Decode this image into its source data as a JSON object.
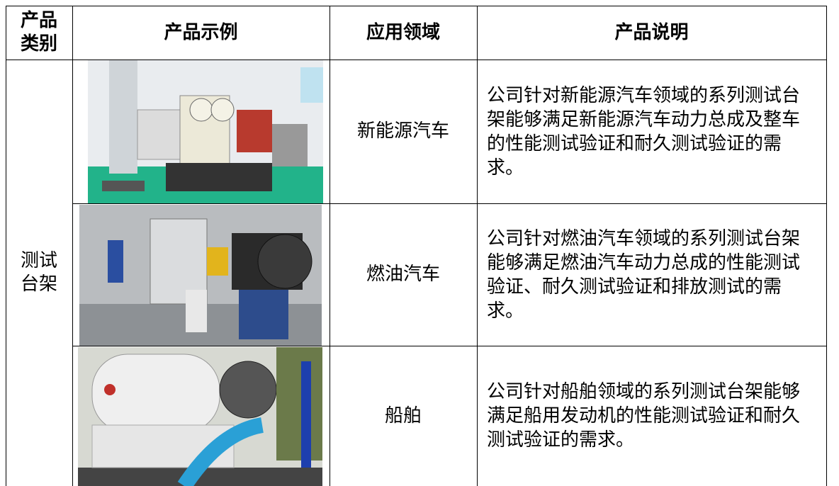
{
  "table": {
    "headers": [
      "产品类别",
      "产品示例",
      "应用领域",
      "产品说明"
    ],
    "category": "测试台架",
    "rows": [
      {
        "application": "新能源汽车",
        "description": "公司针对新能源汽车领域的系列测试台架能够满足新能源汽车动力总成及整车的性能测试验证和耐久测试验证的需求。"
      },
      {
        "application": "燃油汽车",
        "description": "公司针对燃油汽车领域的系列测试台架能够满足燃油汽车动力总成的性能测试验证、耐久测试验证和排放测试的需求。"
      },
      {
        "application": "船舶",
        "description": "公司针对船舶领域的系列测试台架能够满足船用发动机的性能测试验证和耐久测试验证的需求。"
      }
    ]
  }
}
